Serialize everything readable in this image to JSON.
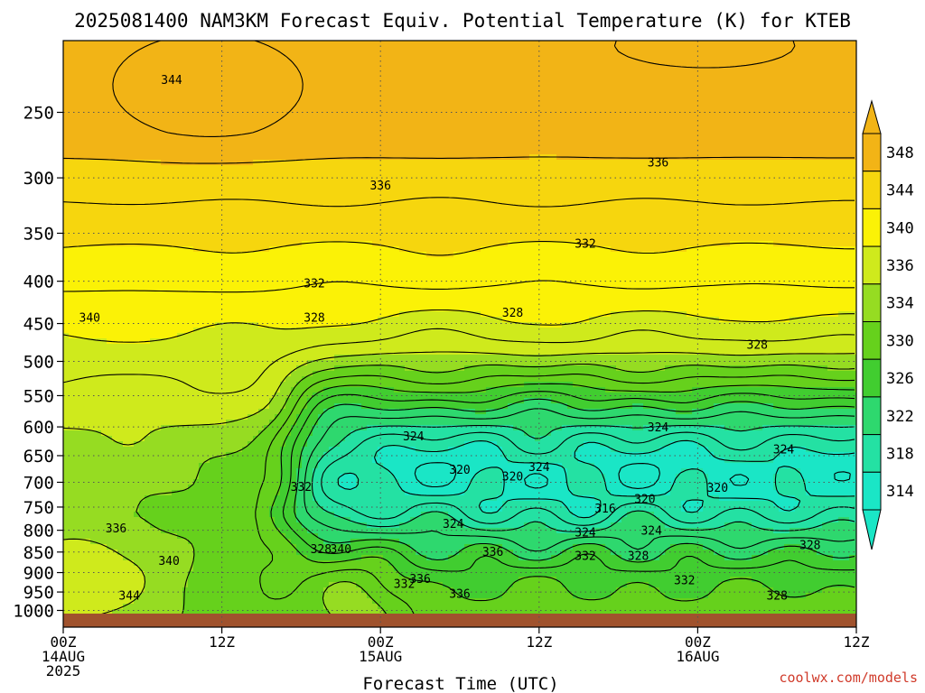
{
  "chart_data": {
    "type": "contour",
    "title": "2025081400 NAM3KM Forecast Equiv. Potential Temperature (K) for KTEB",
    "xlabel": "Forecast Time (UTC)",
    "x_ticks": [
      {
        "hours": 0,
        "lines": [
          "00Z",
          "14AUG",
          "2025"
        ]
      },
      {
        "hours": 12,
        "lines": [
          "12Z"
        ]
      },
      {
        "hours": 24,
        "lines": [
          "00Z",
          "15AUG"
        ]
      },
      {
        "hours": 36,
        "lines": [
          "12Z"
        ]
      },
      {
        "hours": 48,
        "lines": [
          "00Z",
          "16AUG"
        ]
      },
      {
        "hours": 60,
        "lines": [
          "12Z"
        ]
      }
    ],
    "x_range_hours": [
      0,
      60
    ],
    "y_ticks": [
      250,
      300,
      350,
      400,
      450,
      500,
      550,
      600,
      650,
      700,
      750,
      800,
      850,
      900,
      950,
      1000
    ],
    "y_axis_log_scale": true,
    "y_range_hpa": [
      200,
      1000
    ],
    "grid": "dotted",
    "colorbar": {
      "position": "right",
      "levels": [
        348,
        344,
        340,
        336,
        334,
        330,
        326,
        322,
        318,
        314
      ],
      "bins": [
        {
          "level": 348,
          "color": "#f2b416"
        },
        {
          "level": 344,
          "color": "#f6d60e"
        },
        {
          "level": 340,
          "color": "#fbf206"
        },
        {
          "level": 336,
          "color": "#cfea1c"
        },
        {
          "level": 334,
          "color": "#96dc22"
        },
        {
          "level": 330,
          "color": "#66d11c"
        },
        {
          "level": 326,
          "color": "#41cd30"
        },
        {
          "level": 322,
          "color": "#2ed86e"
        },
        {
          "level": 318,
          "color": "#24e1a3"
        },
        {
          "level": 314,
          "color": "#1ae6c6"
        }
      ]
    },
    "contour_labels": [
      {
        "text": "344",
        "hours": 8.2,
        "p": 228
      },
      {
        "text": "336",
        "hours": 24.0,
        "p": 306
      },
      {
        "text": "336",
        "hours": 45.0,
        "p": 287
      },
      {
        "text": "332",
        "hours": 39.5,
        "p": 360
      },
      {
        "text": "332",
        "hours": 19.0,
        "p": 402
      },
      {
        "text": "328",
        "hours": 19.0,
        "p": 442
      },
      {
        "text": "328",
        "hours": 34.0,
        "p": 436
      },
      {
        "text": "328",
        "hours": 52.5,
        "p": 477
      },
      {
        "text": "340",
        "hours": 2.0,
        "p": 442
      },
      {
        "text": "324",
        "hours": 26.5,
        "p": 615
      },
      {
        "text": "324",
        "hours": 45.0,
        "p": 600
      },
      {
        "text": "324",
        "hours": 54.5,
        "p": 638
      },
      {
        "text": "324",
        "hours": 36.0,
        "p": 670
      },
      {
        "text": "320",
        "hours": 30.0,
        "p": 675
      },
      {
        "text": "320",
        "hours": 34.0,
        "p": 688
      },
      {
        "text": "332",
        "hours": 18.0,
        "p": 708
      },
      {
        "text": "320",
        "hours": 44.0,
        "p": 732
      },
      {
        "text": "320",
        "hours": 49.5,
        "p": 710
      },
      {
        "text": "316",
        "hours": 41.0,
        "p": 752
      },
      {
        "text": "324",
        "hours": 29.5,
        "p": 785
      },
      {
        "text": "324",
        "hours": 39.5,
        "p": 804
      },
      {
        "text": "324",
        "hours": 44.5,
        "p": 800
      },
      {
        "text": "336",
        "hours": 4.0,
        "p": 795
      },
      {
        "text": "328",
        "hours": 19.5,
        "p": 842
      },
      {
        "text": "340",
        "hours": 21.0,
        "p": 842
      },
      {
        "text": "336",
        "hours": 32.5,
        "p": 848
      },
      {
        "text": "332",
        "hours": 39.5,
        "p": 858
      },
      {
        "text": "328",
        "hours": 43.5,
        "p": 858
      },
      {
        "text": "328",
        "hours": 56.5,
        "p": 833
      },
      {
        "text": "340",
        "hours": 8.0,
        "p": 870
      },
      {
        "text": "336",
        "hours": 27.0,
        "p": 915
      },
      {
        "text": "332",
        "hours": 25.8,
        "p": 928
      },
      {
        "text": "332",
        "hours": 47.0,
        "p": 918
      },
      {
        "text": "336",
        "hours": 30.0,
        "p": 953
      },
      {
        "text": "344",
        "hours": 5.0,
        "p": 958
      },
      {
        "text": "328",
        "hours": 54.0,
        "p": 958
      }
    ],
    "credit": "coolwx.com/models"
  }
}
